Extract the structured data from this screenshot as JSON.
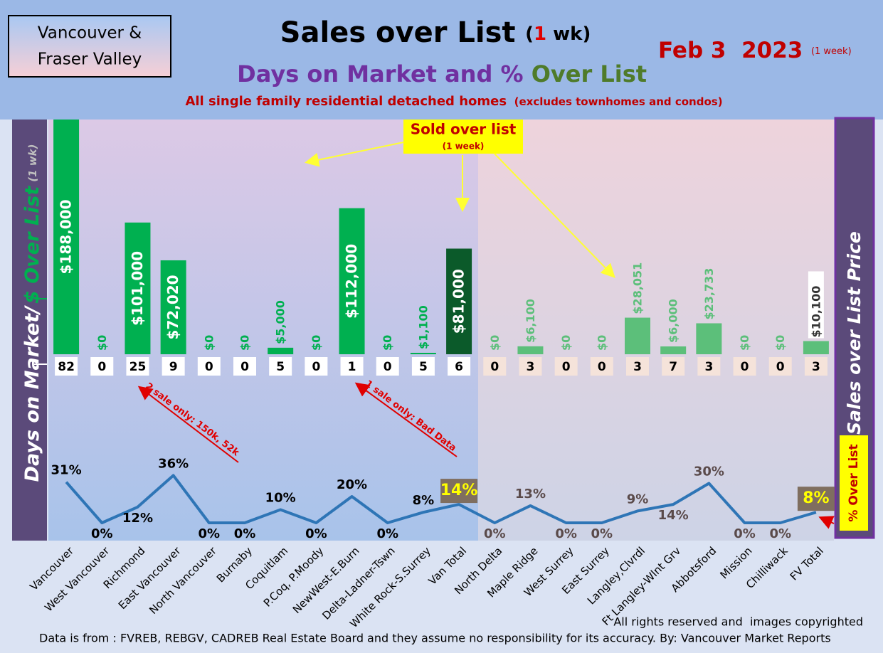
{
  "region": [
    "Vancouver &",
    "Fraser Valley"
  ],
  "date": "Feb 3  2023",
  "date_note": "(1 week)",
  "chart_data": {
    "type": "bar",
    "title": "Sales over List",
    "title_note": [
      "(",
      "1",
      " wk)"
    ],
    "subtitle": [
      "Days on Market and % ",
      "Over List"
    ],
    "tagline": "All single family residential detached homes",
    "tagline_note": "(excludes townhomes and condos)",
    "y_label": "Days on Market/",
    "y_label_note": "(1 wk)",
    "side_label": "Sales over List Price",
    "callout": "Sold over list",
    "callout_note": "(1 week)",
    "annotations": [
      "2 sale only: 150k, 52k",
      "1 sale only: Bad Data"
    ],
    "categories": [
      "Vancouver",
      "West Vancouver",
      "Richmond",
      "East Vancouver",
      "North Vancouver",
      "Burnaby",
      "Coquitlam",
      "P.Coq, P.Moody",
      "NewWest-E.Burn",
      "Delta-Ladner-Tswn",
      "White Rock-S.Surrey",
      "Van Total",
      "North Delta",
      "Maple Ridge",
      "West Surrey",
      "East Surrey",
      "Langley,Clvrdl",
      "Ft Langley-Wlnt Grv",
      "Abbotsford",
      "Mission",
      "Chilliwack",
      "FV Total"
    ],
    "series": [
      {
        "name": "$ Over List",
        "values": [
          188000,
          0,
          101000,
          72020,
          0,
          0,
          5000,
          0,
          112000,
          0,
          1100,
          81000,
          0,
          6100,
          0,
          0,
          28051,
          6000,
          23733,
          0,
          0,
          10100
        ],
        "value_labels": [
          "$188,000",
          "$0",
          "$101,000",
          "$72,020",
          "$0",
          "$0",
          "$5,000",
          "$0",
          "$112,000",
          "$0",
          "$1,100",
          "$81,000",
          "$0",
          "$6,100",
          "$0",
          "$0",
          "$28,051",
          "$6,000",
          "$23,733",
          "$0",
          "$0",
          "$10,100"
        ],
        "colors": [
          "#00b050",
          "#00b050",
          "#00b050",
          "#00b050",
          "#00b050",
          "#00b050",
          "#00b050",
          "#00b050",
          "#00b050",
          "#00b050",
          "#00b050",
          "#0b5a2a",
          "#5cbf7a",
          "#5cbf7a",
          "#5cbf7a",
          "#5cbf7a",
          "#5cbf7a",
          "#5cbf7a",
          "#5cbf7a",
          "#5cbf7a",
          "#5cbf7a",
          "#5cbf7a"
        ]
      },
      {
        "name": "% Over List",
        "type": "line",
        "axis": "y2",
        "color": "#2e75b6",
        "values": [
          31,
          0,
          12,
          36,
          0,
          0,
          10,
          0,
          20,
          0,
          8,
          14,
          0,
          13,
          0,
          0,
          9,
          14,
          30,
          0,
          0,
          8
        ],
        "value_labels": [
          "31%",
          "0%",
          "12%",
          "36%",
          "0%",
          "0%",
          "10%",
          "0%",
          "20%",
          "0%",
          "8%",
          "14%",
          "0%",
          "13%",
          "0%",
          "0%",
          "9%",
          "14%",
          "30%",
          "0%",
          "0%",
          "8%"
        ]
      }
    ],
    "days_on_market": [
      82,
      0,
      25,
      9,
      0,
      0,
      5,
      0,
      1,
      0,
      5,
      6,
      0,
      3,
      0,
      0,
      3,
      7,
      3,
      0,
      0,
      3
    ],
    "ylim": [
      0,
      180000
    ],
    "y2lim": [
      0,
      40
    ]
  },
  "footer": [
    "All rights reserved and  images copyrighted",
    "Data is from : FVREB, REBGV, CADREB Real Estate Board and they assume no responsibility for its accuracy. By: Vancouver Market Reports"
  ]
}
